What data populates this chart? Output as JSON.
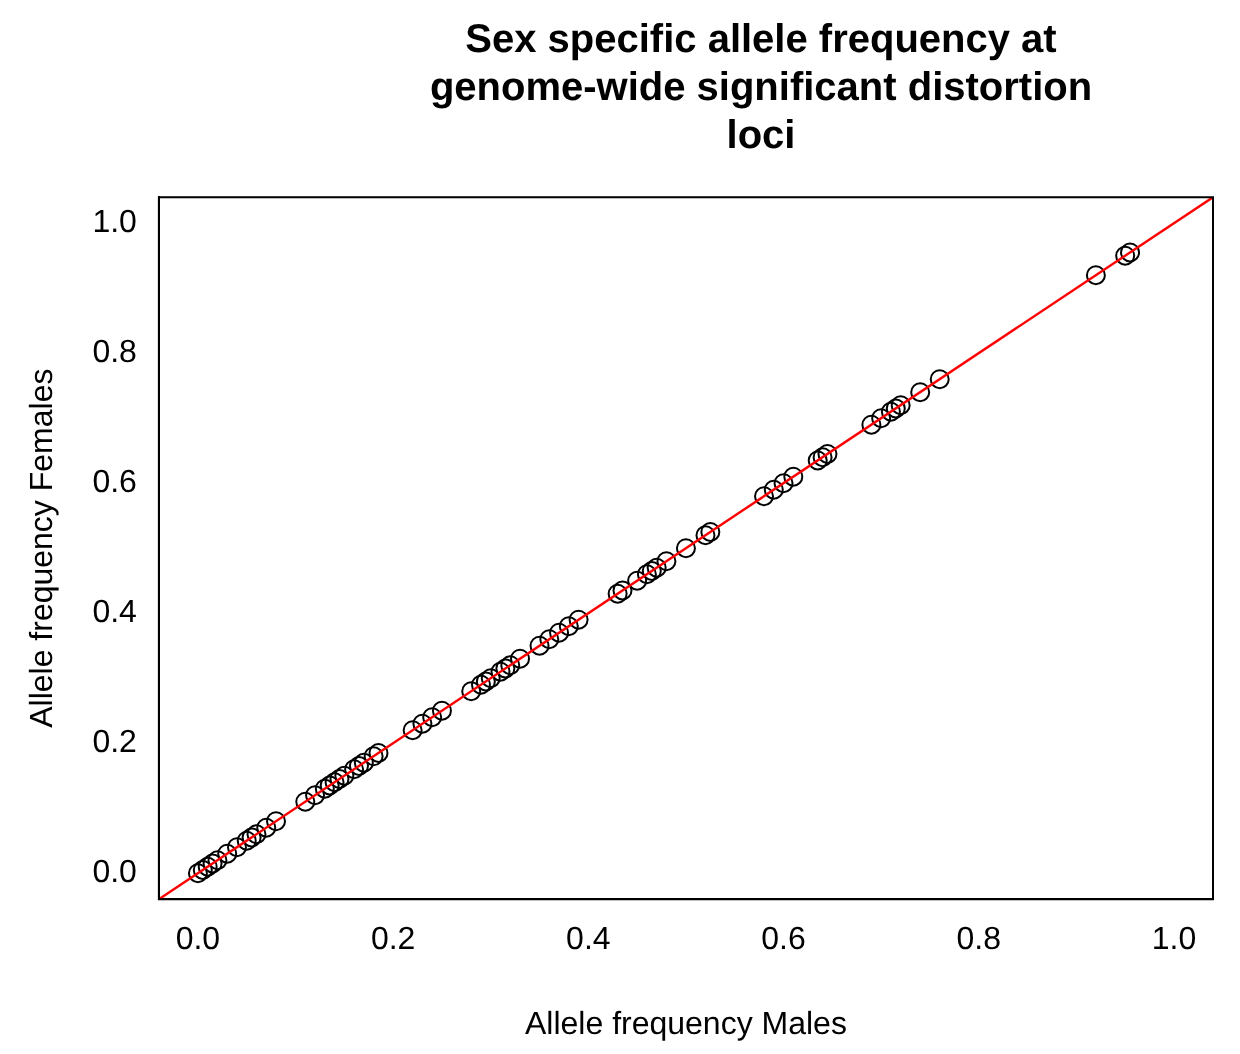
{
  "chart_data": {
    "type": "scatter",
    "title": "Sex specific allele frequency at genome-wide significant distortion loci",
    "xlabel": "Allele frequency Males",
    "ylabel": "Allele frequency Females",
    "xlim": [
      -0.04,
      1.04
    ],
    "ylim": [
      -0.04,
      1.04
    ],
    "xticks": [
      {
        "value": 0,
        "label": "0.0"
      },
      0.2,
      0.4,
      0.6,
      0.8,
      {
        "value": 1,
        "label": "1.0"
      }
    ],
    "yticks": [
      {
        "value": 0,
        "label": "0.0"
      },
      0.2,
      0.4,
      0.6,
      0.8,
      {
        "value": 1,
        "label": "1.0"
      }
    ],
    "grid": false,
    "legend": false,
    "series": [
      {
        "type": "scatter",
        "marker": "circle",
        "color": "#000000",
        "x": [
          0.0,
          0.005,
          0.01,
          0.015,
          0.02,
          0.03,
          0.04,
          0.05,
          0.055,
          0.06,
          0.07,
          0.08,
          0.11,
          0.12,
          0.13,
          0.135,
          0.14,
          0.145,
          0.15,
          0.16,
          0.165,
          0.17,
          0.18,
          0.185,
          0.22,
          0.23,
          0.24,
          0.25,
          0.28,
          0.29,
          0.295,
          0.3,
          0.31,
          0.315,
          0.32,
          0.33,
          0.35,
          0.36,
          0.37,
          0.38,
          0.39,
          0.43,
          0.435,
          0.45,
          0.46,
          0.465,
          0.47,
          0.48,
          0.5,
          0.52,
          0.525,
          0.58,
          0.59,
          0.6,
          0.61,
          0.635,
          0.64,
          0.645,
          0.69,
          0.7,
          0.71,
          0.715,
          0.72,
          0.74,
          0.76,
          0.92,
          0.95,
          0.955
        ],
        "values": [
          0.0,
          0.005,
          0.01,
          0.015,
          0.02,
          0.03,
          0.04,
          0.05,
          0.055,
          0.06,
          0.07,
          0.08,
          0.11,
          0.12,
          0.13,
          0.135,
          0.14,
          0.145,
          0.15,
          0.16,
          0.165,
          0.17,
          0.18,
          0.185,
          0.22,
          0.23,
          0.24,
          0.25,
          0.28,
          0.29,
          0.295,
          0.3,
          0.31,
          0.315,
          0.32,
          0.33,
          0.35,
          0.36,
          0.37,
          0.38,
          0.39,
          0.43,
          0.435,
          0.45,
          0.46,
          0.465,
          0.47,
          0.48,
          0.5,
          0.52,
          0.525,
          0.58,
          0.59,
          0.6,
          0.61,
          0.635,
          0.64,
          0.645,
          0.69,
          0.7,
          0.71,
          0.715,
          0.72,
          0.74,
          0.76,
          0.92,
          0.95,
          0.955
        ]
      },
      {
        "type": "line",
        "color": "#ff0000",
        "x": [
          -0.04,
          1.04
        ],
        "values": [
          -0.04,
          1.04
        ]
      }
    ]
  }
}
